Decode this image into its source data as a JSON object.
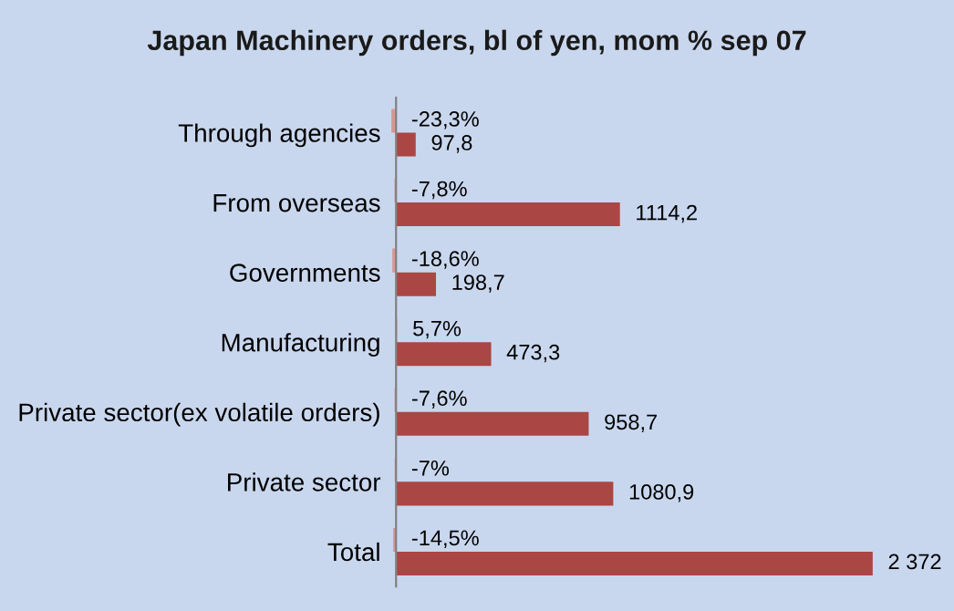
{
  "chart_data": {
    "type": "bar",
    "orientation": "horizontal",
    "title": "Japan Machinery orders, bl of yen, mom % sep 07",
    "categories": [
      "Through agencies",
      "From overseas",
      "Governments",
      "Manufacturing",
      "Private sector(ex volatile orders)",
      "Private sector",
      "Total"
    ],
    "series": [
      {
        "color": "#d99694",
        "values": [
          -23.3,
          -7.8,
          -18.6,
          5.7,
          -7.6,
          -7,
          -14.5
        ],
        "value_labels": [
          "-23,3%",
          "-7,8%",
          "-18,6%",
          "5,7%",
          "-7,6%",
          "-7%",
          "-14,5%"
        ]
      },
      {
        "color": "#aa4643",
        "values": [
          97.8,
          1114.2,
          198.7,
          473.3,
          958.7,
          1080.9,
          2372
        ],
        "value_labels": [
          "97,8",
          "1114,2",
          "198,7",
          "473,3",
          "958,7",
          "1080,9",
          "2 372"
        ]
      }
    ],
    "grid": false,
    "legend": false
  }
}
